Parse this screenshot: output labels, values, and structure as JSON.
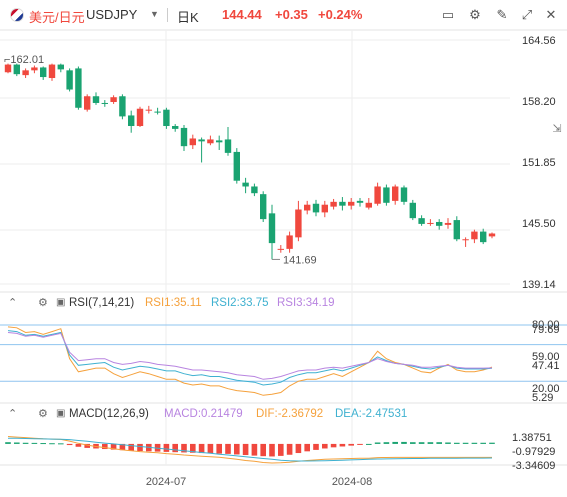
{
  "header": {
    "pair_name": "美元/日元",
    "symbol": "USDJPY",
    "period": "日K",
    "price": "144.44",
    "change": "+0.35",
    "change_pct": "+0.24%"
  },
  "tools": [
    {
      "name": "chart-type-icon",
      "glyph": "▭"
    },
    {
      "name": "indicator-settings-icon",
      "glyph": "⚙"
    },
    {
      "name": "draw-tool-icon",
      "glyph": "✎"
    },
    {
      "name": "expand-icon",
      "glyph": "⤢"
    },
    {
      "name": "close-icon",
      "glyph": "✕"
    }
  ],
  "colors": {
    "up": "#f0483e",
    "down": "#1aa371",
    "rsi1": "#f5a13c",
    "rsi2": "#3fb1d0",
    "rsi3": "#b884e0",
    "grid": "#eeeeee"
  },
  "chart_data": [
    {
      "type": "candlestick",
      "title": "USDJPY 日K",
      "y_ticks": [
        "164.56",
        "158.20",
        "151.85",
        "145.50",
        "139.14"
      ],
      "ylim": [
        139.14,
        164.56
      ],
      "x_ticks": [
        "2024-07",
        "2024-08"
      ],
      "annotations": {
        "high": "162.01",
        "low": "141.69"
      },
      "candles": [
        [
          161.2,
          162.0,
          162.1,
          161.1
        ],
        [
          162.0,
          161.0,
          162.1,
          160.8
        ],
        [
          160.9,
          161.4,
          161.6,
          160.6
        ],
        [
          161.4,
          161.7,
          161.9,
          161.1
        ],
        [
          161.7,
          160.7,
          161.8,
          160.4
        ],
        [
          160.6,
          162.0,
          162.1,
          160.3
        ],
        [
          162.0,
          161.5,
          162.1,
          161.2
        ],
        [
          161.4,
          159.4,
          161.6,
          159.2
        ],
        [
          161.6,
          157.5,
          161.8,
          157.3
        ],
        [
          157.3,
          158.7,
          158.9,
          157.1
        ],
        [
          158.7,
          158.0,
          159.1,
          157.8
        ],
        [
          158.0,
          157.9,
          158.3,
          157.6
        ],
        [
          158.1,
          158.6,
          158.8,
          157.9
        ],
        [
          158.7,
          156.6,
          158.9,
          156.3
        ],
        [
          156.7,
          155.6,
          157.2,
          154.9
        ],
        [
          155.6,
          157.4,
          157.6,
          155.5
        ],
        [
          157.2,
          157.3,
          157.7,
          156.9
        ],
        [
          157.1,
          157.0,
          157.5,
          156.8
        ],
        [
          157.3,
          155.6,
          157.5,
          155.3
        ],
        [
          155.6,
          155.3,
          155.8,
          155.0
        ],
        [
          155.4,
          153.5,
          155.7,
          153.0
        ],
        [
          153.6,
          154.3,
          154.7,
          153.2
        ],
        [
          154.2,
          154.0,
          154.4,
          151.8
        ],
        [
          153.8,
          154.2,
          154.6,
          153.6
        ],
        [
          154.1,
          153.9,
          154.6,
          153.1
        ],
        [
          154.2,
          152.8,
          155.5,
          152.5
        ],
        [
          152.9,
          149.9,
          153.3,
          149.6
        ],
        [
          149.7,
          149.3,
          150.2,
          148.6
        ],
        [
          149.3,
          148.6,
          149.6,
          148.3
        ],
        [
          148.5,
          145.9,
          148.8,
          145.6
        ],
        [
          146.5,
          143.4,
          147.4,
          141.7
        ],
        [
          142.8,
          142.8,
          143.2,
          142.4
        ],
        [
          142.8,
          144.2,
          144.6,
          142.4
        ],
        [
          144.0,
          146.9,
          147.8,
          143.6
        ],
        [
          146.8,
          147.4,
          147.8,
          146.4
        ],
        [
          147.5,
          146.6,
          147.9,
          146.2
        ],
        [
          146.6,
          147.4,
          147.8,
          146.1
        ],
        [
          147.2,
          147.7,
          148.0,
          146.9
        ],
        [
          147.7,
          147.3,
          148.2,
          146.8
        ],
        [
          147.3,
          147.7,
          148.1,
          146.9
        ],
        [
          147.8,
          147.6,
          148.1,
          147.2
        ],
        [
          147.1,
          147.6,
          148.1,
          146.9
        ],
        [
          147.5,
          149.3,
          149.7,
          147.3
        ],
        [
          149.2,
          147.6,
          149.5,
          147.3
        ],
        [
          147.8,
          149.3,
          149.5,
          147.4
        ],
        [
          149.2,
          147.7,
          149.4,
          147.4
        ],
        [
          147.6,
          146.0,
          147.9,
          145.8
        ],
        [
          146.0,
          145.4,
          146.3,
          145.2
        ],
        [
          145.4,
          145.5,
          145.9,
          145.2
        ],
        [
          145.6,
          145.2,
          145.9,
          144.8
        ],
        [
          145.3,
          145.5,
          146.0,
          144.9
        ],
        [
          145.8,
          143.8,
          146.2,
          143.6
        ],
        [
          143.8,
          143.8,
          144.0,
          143.0
        ],
        [
          143.8,
          144.6,
          144.8,
          143.4
        ],
        [
          144.6,
          143.5,
          144.9,
          143.3
        ],
        [
          144.1,
          144.4,
          144.5,
          143.9
        ]
      ]
    },
    {
      "type": "line",
      "title": "RSI(7,14,21)",
      "legend": [
        "RSI1:35.11",
        "RSI2:33.75",
        "RSI3:34.19"
      ],
      "y_ticks": [
        "80.00",
        "79.69",
        "59.00",
        "47.41",
        "20.00",
        "5.29"
      ],
      "ylim": [
        5.29,
        79.69
      ],
      "levels": [
        80,
        59,
        20
      ],
      "series": [
        {
          "name": "RSI1",
          "values": [
            78,
            77,
            72,
            73,
            70,
            73,
            76,
            44,
            30,
            32,
            34,
            34,
            28,
            24,
            27,
            30,
            28,
            25,
            22,
            22,
            18,
            16,
            17,
            15,
            15,
            12,
            10,
            9,
            8,
            5,
            6,
            8,
            15,
            20,
            22,
            22,
            25,
            28,
            25,
            30,
            35,
            40,
            52,
            44,
            40,
            38,
            34,
            30,
            29,
            34,
            38,
            32,
            30,
            30,
            32,
            35.11
          ]
        },
        {
          "name": "RSI2",
          "values": [
            74,
            73,
            69,
            70,
            68,
            70,
            72,
            48,
            37,
            38,
            39,
            40,
            35,
            32,
            34,
            36,
            35,
            33,
            31,
            31,
            28,
            26,
            27,
            25,
            25,
            23,
            21,
            20,
            19,
            16,
            17,
            19,
            24,
            27,
            29,
            29,
            31,
            33,
            31,
            34,
            37,
            40,
            46,
            42,
            39,
            38,
            36,
            34,
            33,
            35,
            37,
            34,
            33,
            33,
            33,
            33.75
          ]
        },
        {
          "name": "RSI3",
          "values": [
            72,
            71,
            68,
            69,
            67,
            69,
            71,
            51,
            42,
            43,
            44,
            44,
            40,
            38,
            39,
            41,
            40,
            38,
            37,
            36,
            34,
            32,
            32,
            31,
            30,
            29,
            27,
            26,
            25,
            22,
            23,
            25,
            28,
            31,
            32,
            32,
            34,
            35,
            34,
            36,
            38,
            40,
            44,
            41,
            39,
            38,
            37,
            35,
            35,
            36,
            37,
            35,
            34,
            34,
            34,
            34.19
          ]
        }
      ]
    },
    {
      "type": "bar",
      "title": "MACD(12,26,9)",
      "legend": [
        "MACD:0.21479",
        "DIF:-2.36792",
        "DEA:-2.47531"
      ],
      "y_ticks": [
        "1.38751",
        "-0.97929",
        "-3.34609"
      ],
      "ylim": [
        -3.34609,
        1.38751
      ],
      "x_ticks": [
        "2024-07",
        "2024-08"
      ],
      "macd": [
        0.3,
        0.25,
        0.2,
        0.18,
        0.15,
        0.12,
        0.1,
        -0.2,
        -0.5,
        -0.7,
        -0.8,
        -0.9,
        -1.0,
        -1.1,
        -1.2,
        -1.25,
        -1.3,
        -1.35,
        -1.4,
        -1.45,
        -1.5,
        -1.55,
        -1.6,
        -1.65,
        -1.7,
        -1.75,
        -1.85,
        -1.95,
        -2.05,
        -2.15,
        -2.2,
        -2.1,
        -1.9,
        -1.6,
        -1.3,
        -1.05,
        -0.8,
        -0.6,
        -0.45,
        -0.3,
        -0.15,
        0.0,
        0.25,
        0.3,
        0.35,
        0.35,
        0.3,
        0.3,
        0.3,
        0.3,
        0.25,
        0.2,
        0.2,
        0.2,
        0.2,
        0.21479
      ],
      "series": [
        {
          "name": "DIF",
          "values": [
            1.3,
            1.2,
            1.1,
            1.0,
            0.9,
            0.85,
            0.8,
            0.5,
            0.1,
            -0.2,
            -0.45,
            -0.65,
            -0.85,
            -1.05,
            -1.2,
            -1.35,
            -1.45,
            -1.55,
            -1.7,
            -1.8,
            -1.95,
            -2.05,
            -2.15,
            -2.25,
            -2.35,
            -2.5,
            -2.7,
            -2.9,
            -3.05,
            -3.25,
            -3.35,
            -3.3,
            -3.2,
            -3.05,
            -2.9,
            -2.8,
            -2.7,
            -2.65,
            -2.6,
            -2.55,
            -2.5,
            -2.5,
            -2.4,
            -2.38,
            -2.36,
            -2.36,
            -2.37,
            -2.37,
            -2.37,
            -2.37,
            -2.37,
            -2.37,
            -2.37,
            -2.37,
            -2.37,
            -2.36792
          ]
        },
        {
          "name": "DEA",
          "values": [
            1.0,
            0.98,
            0.95,
            0.92,
            0.88,
            0.85,
            0.82,
            0.75,
            0.6,
            0.45,
            0.3,
            0.15,
            0.0,
            -0.15,
            -0.3,
            -0.45,
            -0.6,
            -0.75,
            -0.9,
            -1.05,
            -1.2,
            -1.35,
            -1.5,
            -1.65,
            -1.8,
            -1.95,
            -2.1,
            -2.25,
            -2.4,
            -2.55,
            -2.7,
            -2.85,
            -2.95,
            -3.0,
            -3.0,
            -2.98,
            -2.95,
            -2.9,
            -2.85,
            -2.8,
            -2.75,
            -2.7,
            -2.65,
            -2.62,
            -2.6,
            -2.58,
            -2.56,
            -2.55,
            -2.53,
            -2.52,
            -2.51,
            -2.5,
            -2.49,
            -2.48,
            -2.48,
            -2.47531
          ]
        }
      ]
    }
  ]
}
